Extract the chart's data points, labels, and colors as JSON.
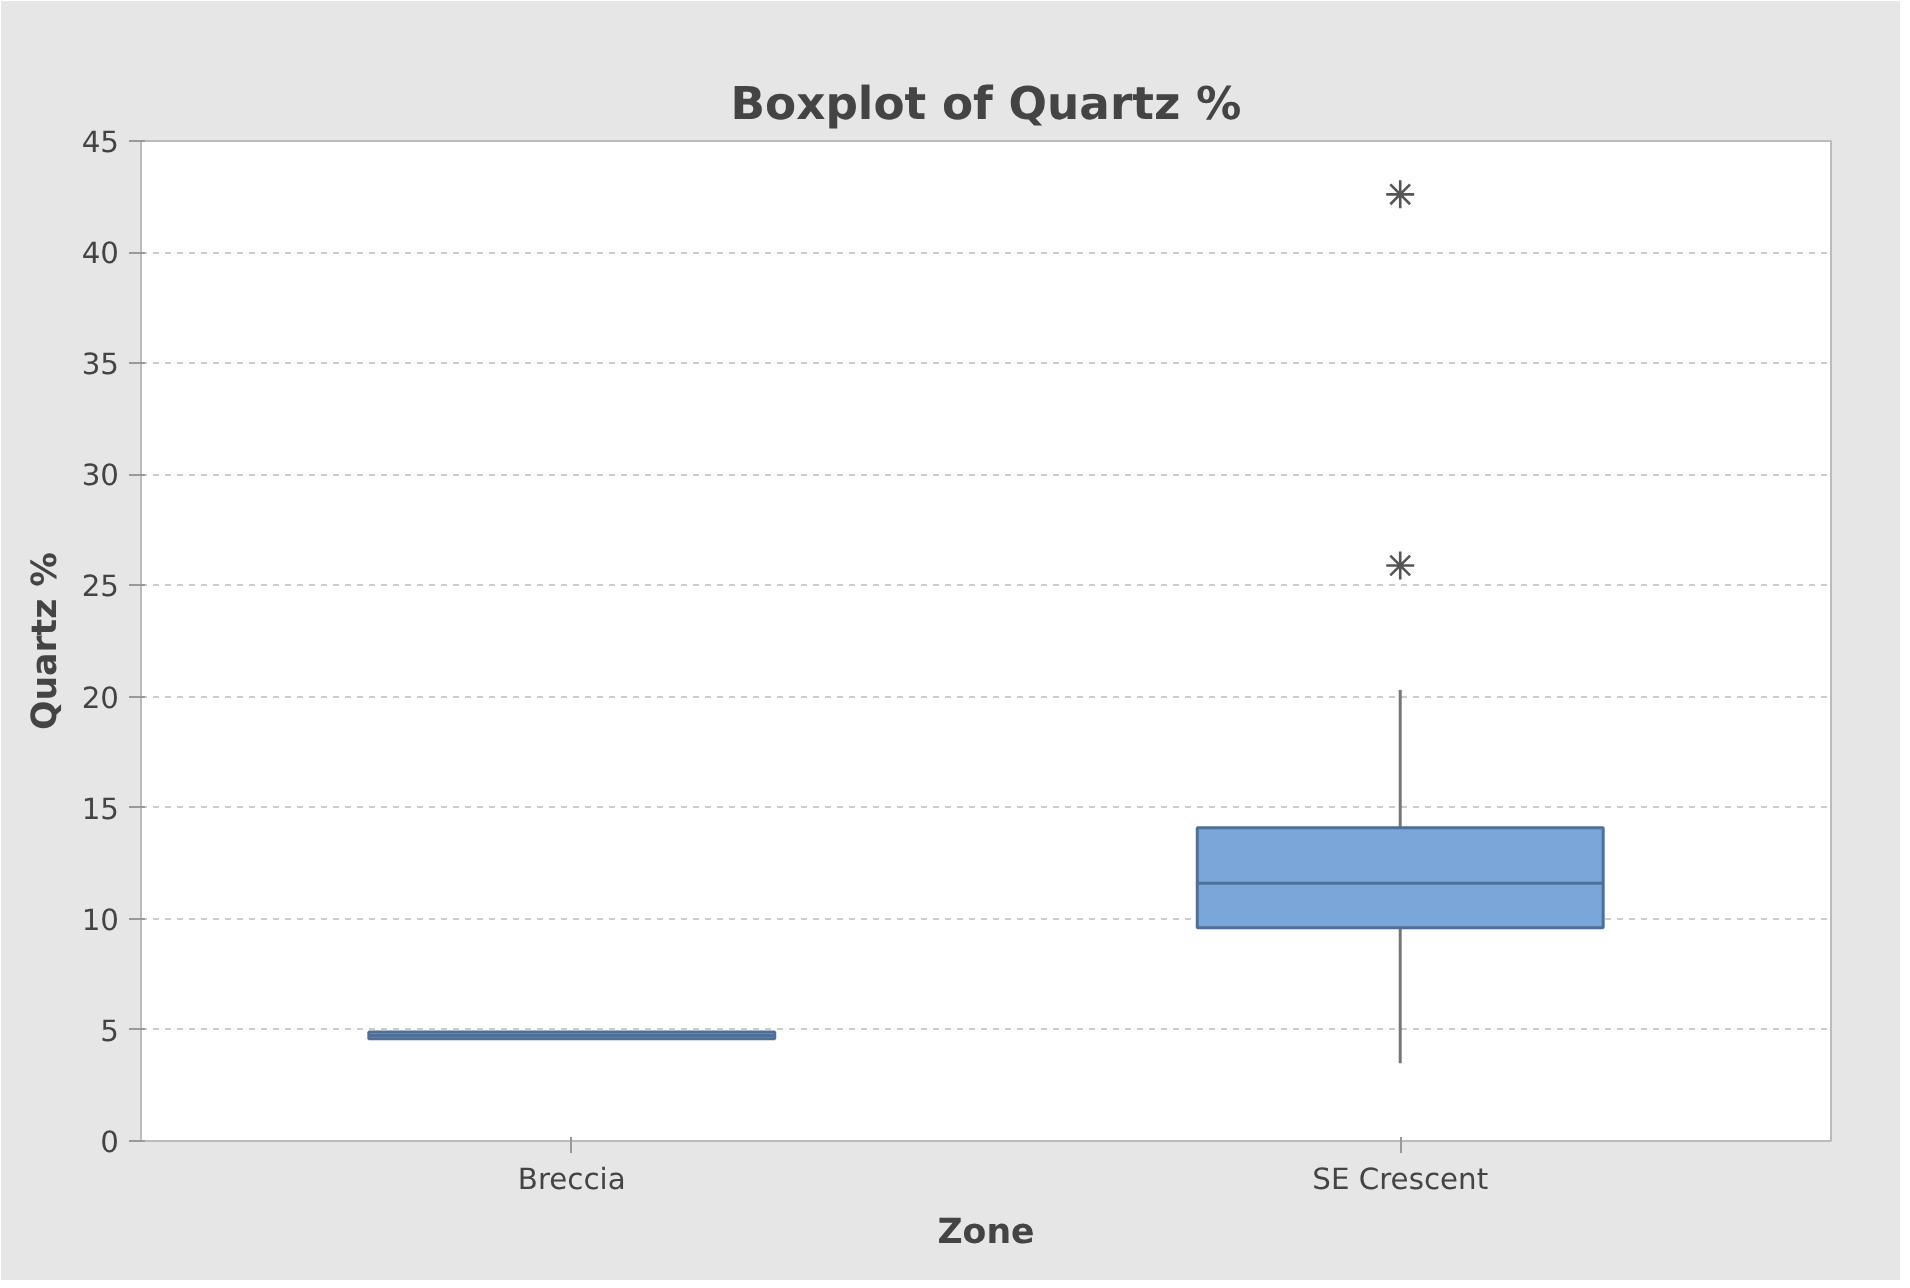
{
  "chart_data": {
    "type": "box",
    "title": "Boxplot of Quartz %",
    "xlabel": "Zone",
    "ylabel": "Quartz %",
    "categories": [
      "Breccia",
      "SE Crescent"
    ],
    "color": "#7ba6d9",
    "boxes": [
      {
        "low": 4.6,
        "q1": 4.6,
        "median": 4.75,
        "q3": 4.9,
        "high": 4.9
      },
      {
        "low": 3.5,
        "q1": 9.6,
        "median": 11.6,
        "q3": 14.1,
        "high": 20.3,
        "outliers": [
          25.9,
          42.6
        ]
      }
    ],
    "ylim": [
      0,
      45
    ],
    "yticks": [
      0,
      5,
      10,
      15,
      20,
      25,
      30,
      35,
      40,
      45
    ],
    "grid": "y"
  }
}
